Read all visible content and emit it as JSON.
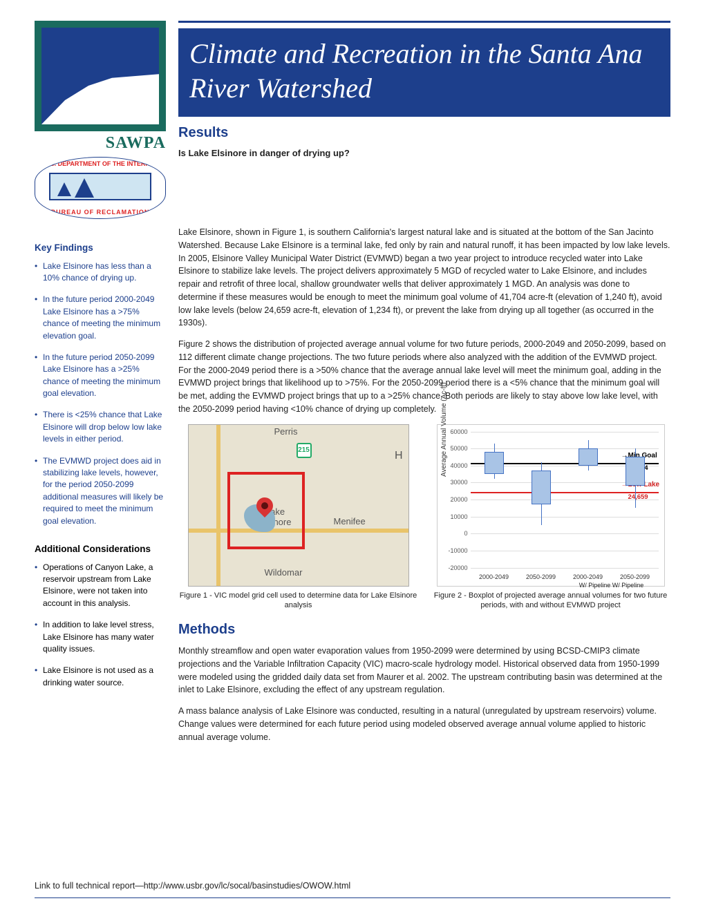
{
  "title": "Climate and Recreation in the Santa Ana River Watershed",
  "org": {
    "name": "SAWPA",
    "dept_top": "U.S. DEPARTMENT OF THE INTERIOR",
    "dept_bot": "BUREAU OF RECLAMATION"
  },
  "sections": {
    "results": "Results",
    "methods": "Methods"
  },
  "question": "Is Lake Elsinore in danger of drying up?",
  "para1": "Lake Elsinore, shown in Figure 1, is southern California's largest natural lake and is situated at the bottom of the San Jacinto Watershed.  Because Lake Elsinore is a terminal lake, fed only by rain and natural runoff, it has been impacted by low lake levels.  In 2005, Elsinore Valley Municipal Water District (EVMWD) began a two year project to introduce recycled water into Lake Elsinore to stabilize lake levels. The project delivers approximately 5 MGD of recycled water to Lake Elsinore, and includes repair and retrofit of three local, shallow groundwater wells that deliver approximately 1 MGD.  An analysis was done to determine if these measures would be enough to meet the minimum goal volume of 41,704 acre-ft (elevation of 1,240 ft), avoid low lake levels (below 24,659 acre-ft, elevation of 1,234 ft), or prevent the lake from drying up all together (as occurred in the 1930s).",
  "para2": "Figure 2 shows the distribution of projected average annual volume for two future periods, 2000-2049 and 2050-2099, based on 112 different climate change projections.  The two future periods where also analyzed with the addition of the EVMWD project.  For the 2000-2049 period there is a >50% chance that the average annual lake level will meet the minimum goal, adding in the EVMWD project brings that likelihood up to >75%.  For the 2050-2099 period there is a <5% chance that the minimum goal will be met, adding the EVMWD project brings that up to a >25% chance.  Both periods are likely to stay above low lake level, with the 2050-2099 period having <10% chance of drying up completely.",
  "key_findings_head": "Key Findings",
  "key_findings": [
    "Lake Elsinore has less than a 10% chance of drying up.",
    "In the future period 2000-2049 Lake Elsinore has a >75% chance of meeting the minimum elevation goal.",
    "In the future period 2050-2099 Lake Elsinore has a >25% chance of meeting the minimum goal elevation.",
    "There is  <25% chance that Lake Elsinore will drop below low lake levels in either period.",
    "The EVMWD project does aid in stabilizing lake levels, however, for the period 2050-2099 additional measures will likely be required to meet the minimum goal elevation."
  ],
  "add_head": "Additional Considerations",
  "add_items": [
    "Operations of Canyon Lake, a reservoir upstream from Lake Elsinore, were not taken into account in this analysis.",
    "In addition to lake level stress, Lake Elsinore has many water quality issues.",
    "Lake Elsinore is not used as a drinking water source."
  ],
  "methods_p1": "Monthly streamflow and open water evaporation  values from 1950-2099 were determined by using BCSD-CMIP3 climate projections and the Variable Infiltration Capacity  (VIC) macro-scale hydrology model.  Historical observed data from 1950-1999 were modeled using the gridded daily data set from Maurer et al. 2002.  The upstream contributing basin was determined at the inlet to Lake Elsinore, excluding the effect of any upstream regulation.",
  "methods_p2": "A mass balance analysis of Lake Elsinore was conducted, resulting in a natural (unregulated by upstream reservoirs)  volume.  Change values were determined for each future period using modeled observed average annual volume applied to historic annual average volume.",
  "map": {
    "shield": "215",
    "cities": {
      "perris": "Perris",
      "menifee": "Menifee",
      "elsinore": "Lake\nElsinore",
      "wildomar": "Wildomar",
      "h": "H"
    }
  },
  "fig1_caption": "Figure 1 - VIC model grid cell used to determine data for Lake Elsinore analysis",
  "fig2_caption": "Figure 2 - Boxplot of projected average annual volumes for two future periods, with and without EVMWD project",
  "chart": {
    "ylabel": "Average Annual Volume (Ac-ft)",
    "ylim": [
      -20000,
      60000
    ],
    "ytick_step": 10000,
    "yticks": [
      -20000,
      -10000,
      0,
      10000,
      20000,
      30000,
      40000,
      50000,
      60000
    ],
    "categories": [
      "2000-2049",
      "2050-2099",
      "2000-2049",
      "2050-2099"
    ],
    "group_label": "W/ Pipeline W/ Pipeline",
    "boxes": [
      {
        "q1": 35000,
        "q3": 48000,
        "lo": 32000,
        "hi": 53000
      },
      {
        "q1": 17000,
        "q3": 37000,
        "lo": 5000,
        "hi": 42000
      },
      {
        "q1": 40000,
        "q3": 50000,
        "lo": 37000,
        "hi": 55000
      },
      {
        "q1": 28000,
        "q3": 45000,
        "lo": 15000,
        "hi": 50000
      }
    ],
    "box_color": "#a9c4e6",
    "box_border": "#4472c4",
    "ref_min": {
      "value": 41704,
      "label_a": "Min Goal",
      "label_b": "41,704",
      "color": "#000000"
    },
    "ref_low": {
      "value": 24659,
      "label_a": "Low Lake",
      "label_b": "24,659",
      "color": "#d22222"
    },
    "grid_color": "#dddddd"
  },
  "footer": "Link to full technical report—http://www.usbr.gov/lc/socal/basinstudies/OWOW.html"
}
